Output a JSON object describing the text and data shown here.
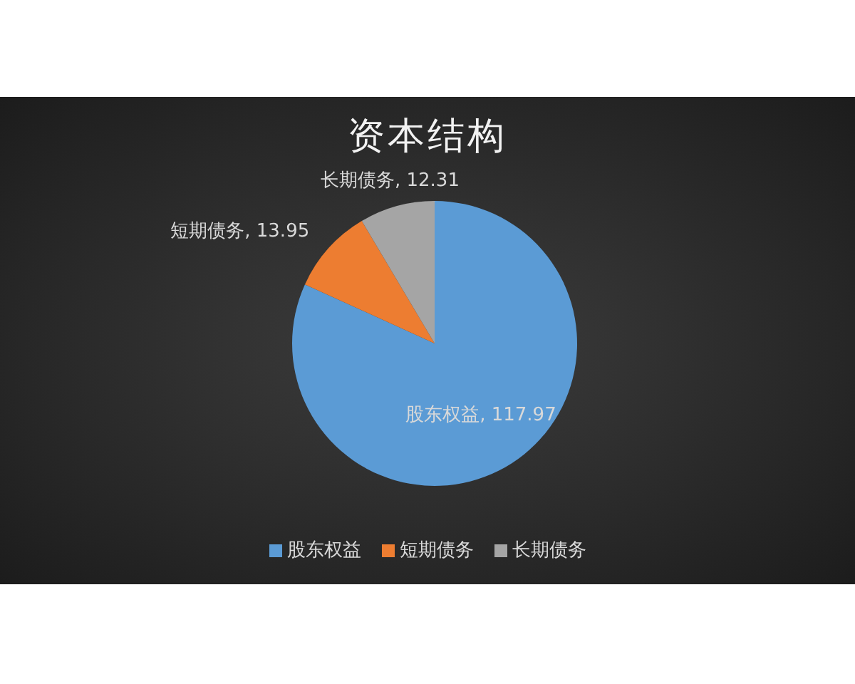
{
  "chart_data": {
    "type": "pie",
    "title": "资本结构",
    "categories": [
      "股东权益",
      "短期债务",
      "长期债务"
    ],
    "values": [
      117.97,
      13.95,
      12.31
    ],
    "colors": [
      "#5b9bd5",
      "#ed7d31",
      "#a5a5a5"
    ],
    "value_labels": [
      "股东权益, 117.97",
      "短期债务, 13.95",
      "长期债务, 12.31"
    ],
    "legend": "bottom"
  }
}
